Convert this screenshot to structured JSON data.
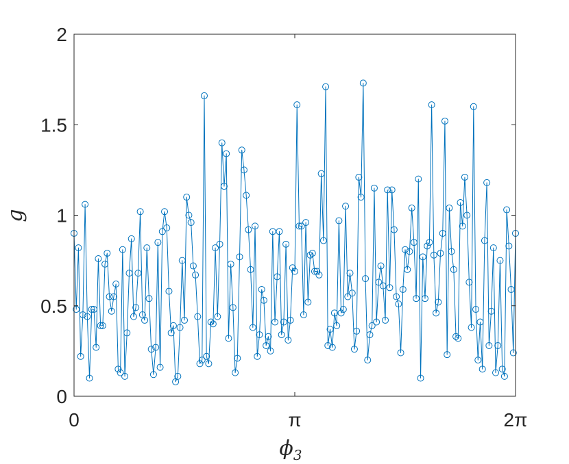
{
  "chart_data": {
    "type": "line",
    "title": "",
    "xlabel": "ϕ",
    "xlabel_subscript": "3",
    "ylabel": "g",
    "xlim": [
      0,
      6.2832
    ],
    "ylim": [
      0,
      2
    ],
    "xticks": [
      {
        "value": 0,
        "label": "0"
      },
      {
        "value": 3.1416,
        "label": "π"
      },
      {
        "value": 6.2832,
        "label": "2π"
      }
    ],
    "yticks": [
      {
        "value": 0,
        "label": "0"
      },
      {
        "value": 0.5,
        "label": "0.5"
      },
      {
        "value": 1,
        "label": "1"
      },
      {
        "value": 1.5,
        "label": "1.5"
      },
      {
        "value": 2,
        "label": "2"
      }
    ],
    "grid": false,
    "legend": "none",
    "color": "#0072BD",
    "series": [
      {
        "x_start": 0,
        "x_end": 6.2832,
        "y": [
          0.9,
          0.48,
          0.82,
          0.22,
          0.45,
          1.06,
          0.44,
          0.1,
          0.48,
          0.48,
          0.27,
          0.76,
          0.39,
          0.39,
          0.73,
          0.79,
          0.55,
          0.47,
          0.55,
          0.62,
          0.15,
          0.13,
          0.81,
          0.11,
          0.35,
          0.68,
          0.87,
          0.44,
          0.49,
          0.68,
          1.02,
          0.45,
          0.42,
          0.82,
          0.54,
          0.26,
          0.12,
          0.27,
          0.85,
          0.16,
          0.91,
          1.02,
          0.93,
          0.58,
          0.35,
          0.39,
          0.08,
          0.11,
          0.38,
          0.75,
          0.42,
          1.1,
          1.0,
          0.96,
          0.72,
          0.67,
          0.44,
          0.18,
          0.2,
          1.66,
          0.22,
          0.18,
          0.41,
          0.4,
          0.82,
          0.44,
          0.84,
          1.4,
          1.16,
          1.34,
          0.32,
          0.73,
          0.49,
          0.13,
          0.21,
          0.77,
          1.36,
          1.25,
          1.11,
          0.92,
          0.7,
          0.38,
          0.94,
          0.22,
          0.34,
          0.59,
          0.53,
          0.28,
          0.33,
          0.25,
          0.91,
          0.41,
          0.66,
          0.91,
          0.34,
          0.41,
          0.84,
          0.31,
          0.42,
          0.71,
          0.69,
          1.61,
          0.94,
          0.94,
          0.45,
          0.96,
          0.52,
          0.78,
          0.79,
          0.69,
          0.69,
          0.67,
          1.23,
          0.86,
          1.71,
          0.28,
          0.37,
          0.27,
          0.46,
          0.39,
          0.97,
          0.46,
          0.48,
          1.05,
          0.55,
          0.68,
          0.57,
          0.26,
          0.36,
          1.21,
          1.1,
          1.73,
          0.65,
          0.2,
          0.34,
          0.39,
          1.15,
          0.41,
          0.63,
          0.72,
          0.61,
          0.42,
          1.14,
          0.6,
          1.14,
          0.92,
          0.55,
          0.51,
          0.24,
          0.59,
          0.81,
          0.7,
          0.8,
          1.04,
          0.85,
          0.54,
          1.2,
          0.1,
          0.77,
          0.54,
          0.83,
          0.85,
          1.61,
          0.78,
          0.46,
          0.52,
          0.79,
          0.9,
          1.52,
          0.23,
          1.04,
          0.8,
          0.7,
          0.33,
          0.32,
          1.07,
          0.94,
          1.21,
          1.0,
          0.63,
          0.38,
          1.6,
          0.48,
          0.2,
          0.41,
          0.15,
          0.86,
          1.18,
          0.28,
          0.47,
          0.82,
          0.13,
          0.28,
          0.75,
          0.15,
          0.11,
          1.03,
          0.83,
          0.59,
          0.24,
          0.9
        ]
      }
    ]
  }
}
